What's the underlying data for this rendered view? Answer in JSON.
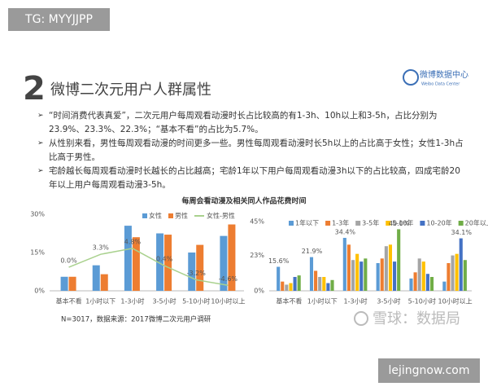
{
  "tag": "TG: MYYJJPP",
  "section_number": "2",
  "title": "微博二次元用户人群属性",
  "logo": {
    "name": "微博数据中心",
    "subtitle": "Weibo Data Center"
  },
  "bullets": [
    "“时间消费代表真爱”，二次元用户每周观看动漫时长占比较高的有1-3h、10h以上和3-5h，占比分别为23.9%、23.3%、22.3%；“基本不看”的占比为5.7%。",
    "从性别来看，男性每周观看动漫的时间更多一些。男性每周观看动漫时长5h以上的占比高于女性；女性1-3h占比高于男性。",
    "宅龄越长每周观看动漫时长越长的占比越高；宅龄1年以下用户每周观看动漫3h以下的占比较高，四成宅龄20年以上用户每周观看动漫3-5h。"
  ],
  "charts_title": "每周会看动漫及相关同人作品花费时间",
  "footnote": "N=3017，数据来源：2017微博二次元用户调研",
  "watermark": "雪球：数据局",
  "site": "lejingnow.com",
  "chart_data": [
    {
      "type": "bar",
      "categories": [
        "基本不看",
        "1小时以下",
        "1-3小时",
        "3-5小时",
        "5-10小时",
        "10小时以上"
      ],
      "series": [
        {
          "name": "女性",
          "color": "#5b9bd5",
          "values": [
            5.5,
            10,
            25.5,
            22.5,
            15,
            21.5
          ]
        },
        {
          "name": "男性",
          "color": "#ed7d31",
          "values": [
            5.5,
            6.5,
            21,
            22,
            18,
            26
          ]
        },
        {
          "name": "女性-男性",
          "color": "#a9d18e",
          "type": "line",
          "axis": "y2",
          "values": [
            0.0,
            3.3,
            4.8,
            0.4,
            -3.2,
            -4.6
          ],
          "value_labels": [
            "0.0%",
            "3.3%",
            "4.8%",
            "0.4%",
            "-3.2%",
            "-4.6%"
          ]
        }
      ],
      "ylim": [
        0,
        30
      ],
      "yticks": [
        {
          "value": 0,
          "label": "0%"
        },
        {
          "value": 15,
          "label": "15%"
        },
        {
          "value": 30,
          "label": "30%"
        }
      ],
      "y2lim": [
        -6,
        13.5
      ],
      "legend": "top"
    },
    {
      "type": "bar",
      "categories": [
        "基本不看",
        "1小时以下",
        "1-3小时",
        "3-5小时",
        "5-10小时",
        "10小时以上"
      ],
      "series": [
        {
          "name": "1年以下",
          "color": "#5b9bd5",
          "values": [
            15.6,
            21.9,
            34.4,
            18,
            8,
            6
          ],
          "value_labels": [
            "15.6%",
            "21.9%",
            "34.4%",
            null,
            null,
            null
          ]
        },
        {
          "name": "1-3年",
          "color": "#ed7d31",
          "values": [
            6,
            13,
            30,
            21,
            12,
            18
          ]
        },
        {
          "name": "3-5年",
          "color": "#a5a5a5",
          "values": [
            4,
            9,
            20,
            29,
            21,
            23
          ]
        },
        {
          "name": "5-10年",
          "color": "#ffc000",
          "values": [
            5,
            9,
            24,
            30,
            19,
            24
          ]
        },
        {
          "name": "10-20年",
          "color": "#4472c4",
          "values": [
            9,
            5,
            19,
            19,
            11,
            34.1
          ],
          "value_labels": [
            null,
            null,
            null,
            null,
            null,
            "34.1%"
          ]
        },
        {
          "name": "20年以上",
          "color": "#70ad47",
          "values": [
            10,
            7,
            21,
            40.0,
            9,
            20
          ],
          "value_labels": [
            null,
            null,
            null,
            "40.0%",
            null,
            null
          ]
        }
      ],
      "ylim": [
        0,
        45
      ],
      "yticks": [
        {
          "value": 0,
          "label": "0%"
        },
        {
          "value": 23,
          "label": "23%"
        },
        {
          "value": 45,
          "label": "45%"
        }
      ],
      "legend": "top"
    }
  ]
}
